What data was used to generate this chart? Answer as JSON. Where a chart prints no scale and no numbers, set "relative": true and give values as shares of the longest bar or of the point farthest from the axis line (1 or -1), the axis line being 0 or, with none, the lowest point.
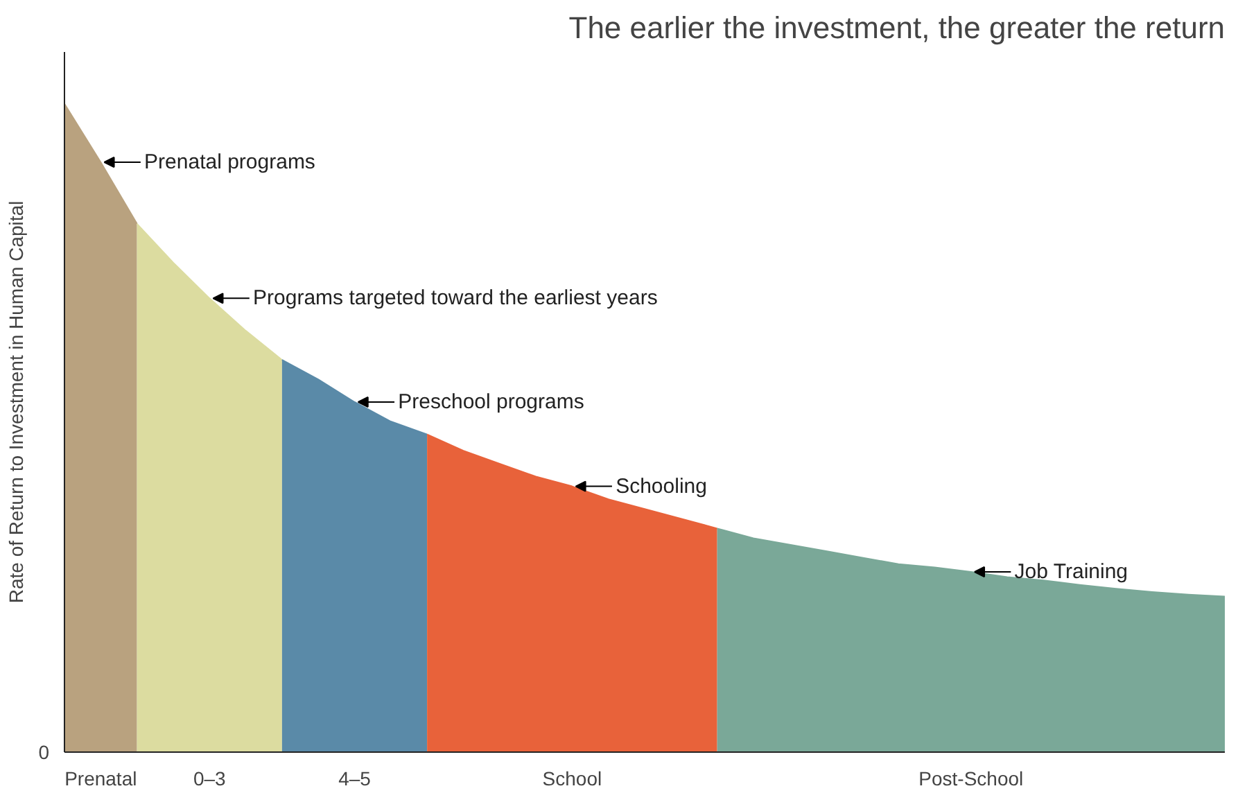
{
  "chart_data": {
    "type": "area",
    "relative": true,
    "title": "The earlier the investment, the greater the return",
    "ylabel": "Rate of Return to Investment in Human Capital",
    "categories": [
      null,
      "Prenatal",
      null,
      null,
      "0–3",
      null,
      null,
      null,
      "4–5",
      null,
      null,
      null,
      null,
      null,
      "School",
      null,
      null,
      null,
      null,
      null,
      null,
      null,
      null,
      null,
      null,
      "Post-School",
      null,
      null,
      null,
      null,
      null,
      null,
      null
    ],
    "series": [
      {
        "color": "#b9a27f",
        "values": [
          1.0,
          0.91,
          0.815,
          null,
          null,
          null,
          null,
          null,
          null,
          null,
          null,
          null,
          null,
          null,
          null,
          null,
          null,
          null,
          null,
          null,
          null,
          null,
          null,
          null,
          null,
          null,
          null,
          null,
          null,
          null,
          null,
          null,
          null
        ]
      },
      {
        "color": "#dcdca0",
        "values": [
          null,
          null,
          0.815,
          0.755,
          0.7,
          0.65,
          0.605,
          null,
          null,
          null,
          null,
          null,
          null,
          null,
          null,
          null,
          null,
          null,
          null,
          null,
          null,
          null,
          null,
          null,
          null,
          null,
          null,
          null,
          null,
          null,
          null,
          null,
          null
        ]
      },
      {
        "color": "#5a8aa8",
        "values": [
          null,
          null,
          null,
          null,
          null,
          null,
          0.605,
          0.575,
          0.54,
          0.51,
          0.49,
          null,
          null,
          null,
          null,
          null,
          null,
          null,
          null,
          null,
          null,
          null,
          null,
          null,
          null,
          null,
          null,
          null,
          null,
          null,
          null,
          null,
          null
        ]
      },
      {
        "color": "#e8623a",
        "values": [
          null,
          null,
          null,
          null,
          null,
          null,
          null,
          null,
          null,
          null,
          0.49,
          0.465,
          0.445,
          0.425,
          0.41,
          0.39,
          0.375,
          0.36,
          0.345,
          null,
          null,
          null,
          null,
          null,
          null,
          null,
          null,
          null,
          null,
          null,
          null,
          null,
          null
        ]
      },
      {
        "color": "#7aa898",
        "values": [
          null,
          null,
          null,
          null,
          null,
          null,
          null,
          null,
          null,
          null,
          null,
          null,
          null,
          null,
          null,
          null,
          null,
          null,
          0.345,
          0.33,
          0.32,
          0.31,
          0.3,
          0.29,
          0.285,
          0.278,
          0.27,
          0.265,
          0.258,
          0.252,
          0.247,
          0.243,
          0.24
        ]
      }
    ],
    "annotations": [
      "Prenatal programs",
      "Programs targeted toward the earliest years",
      "Preschool programs",
      "Schooling",
      "Job Training",
      "0"
    ],
    "grid": false
  }
}
